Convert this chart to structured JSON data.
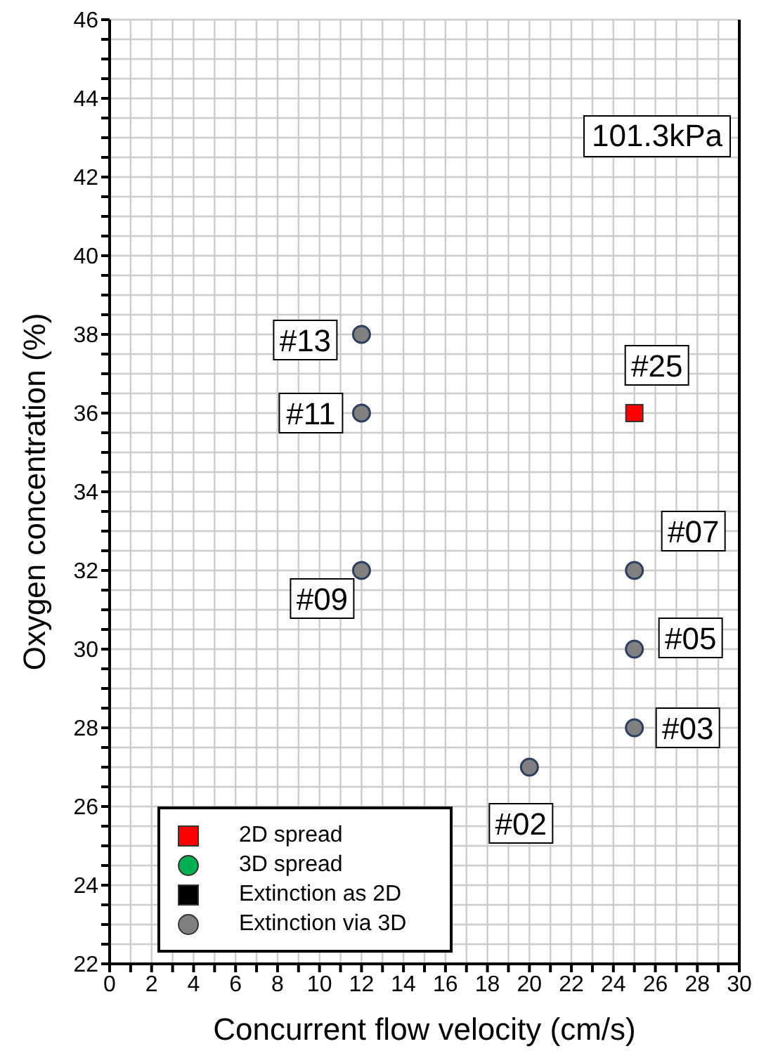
{
  "chart_data": {
    "type": "scatter",
    "xlabel": "Concurrent flow velocity (cm/s)",
    "ylabel": "Oxygen concentration (%)",
    "xlim": [
      0,
      30
    ],
    "ylim": [
      22,
      46
    ],
    "xticks": [
      0,
      {
        "value": 1,
        "label": null
      },
      2,
      {
        "value": 3,
        "label": null
      },
      4,
      {
        "value": 5,
        "label": null
      },
      6,
      {
        "value": 7,
        "label": null
      },
      8,
      {
        "value": 9,
        "label": null
      },
      10,
      {
        "value": 11,
        "label": null
      },
      12,
      {
        "value": 13,
        "label": null
      },
      14,
      {
        "value": 15,
        "label": null
      },
      16,
      {
        "value": 17,
        "label": null
      },
      18,
      {
        "value": 19,
        "label": null
      },
      20,
      {
        "value": 21,
        "label": null
      },
      22,
      {
        "value": 23,
        "label": null
      },
      24,
      {
        "value": 25,
        "label": null
      },
      26,
      {
        "value": 27,
        "label": null
      },
      28,
      {
        "value": 29,
        "label": null
      },
      30
    ],
    "yticks": [
      22,
      {
        "value": 22.5,
        "label": null
      },
      {
        "value": 23,
        "label": null
      },
      {
        "value": 23.5,
        "label": null
      },
      24,
      {
        "value": 24.5,
        "label": null
      },
      {
        "value": 25,
        "label": null
      },
      {
        "value": 25.5,
        "label": null
      },
      26,
      {
        "value": 26.5,
        "label": null
      },
      {
        "value": 27,
        "label": null
      },
      {
        "value": 27.5,
        "label": null
      },
      28,
      {
        "value": 28.5,
        "label": null
      },
      {
        "value": 29,
        "label": null
      },
      {
        "value": 29.5,
        "label": null
      },
      30,
      {
        "value": 30.5,
        "label": null
      },
      {
        "value": 31,
        "label": null
      },
      {
        "value": 31.5,
        "label": null
      },
      32,
      {
        "value": 32.5,
        "label": null
      },
      {
        "value": 33,
        "label": null
      },
      {
        "value": 33.5,
        "label": null
      },
      34,
      {
        "value": 34.5,
        "label": null
      },
      {
        "value": 35,
        "label": null
      },
      {
        "value": 35.5,
        "label": null
      },
      36,
      {
        "value": 36.5,
        "label": null
      },
      {
        "value": 37,
        "label": null
      },
      {
        "value": 37.5,
        "label": null
      },
      38,
      {
        "value": 38.5,
        "label": null
      },
      {
        "value": 39,
        "label": null
      },
      {
        "value": 39.5,
        "label": null
      },
      40,
      {
        "value": 40.5,
        "label": null
      },
      {
        "value": 41,
        "label": null
      },
      {
        "value": 41.5,
        "label": null
      },
      42,
      {
        "value": 42.5,
        "label": null
      },
      {
        "value": 43,
        "label": null
      },
      {
        "value": 43.5,
        "label": null
      },
      44,
      {
        "value": 44.5,
        "label": null
      },
      {
        "value": 45,
        "label": null
      },
      {
        "value": 45.5,
        "label": null
      },
      46
    ],
    "grid": true,
    "legend": "bottom left",
    "series": [
      {
        "name": "2D spread",
        "color": "#ff0000",
        "marker": "square",
        "x": [
          25
        ],
        "values": [
          36
        ]
      },
      {
        "name": "3D spread",
        "color": "#00b050",
        "marker": "circle"
      },
      {
        "name": "Extinction as 2D",
        "color": "#000000",
        "marker": "square"
      },
      {
        "name": "Extinction via 3D",
        "color": "#808080",
        "marker": "circle",
        "x": [
          12,
          12,
          12,
          20,
          25,
          25,
          25
        ],
        "values": [
          38,
          36,
          32,
          27,
          32,
          30,
          28
        ]
      }
    ],
    "annotations": [
      "101.3kPa",
      {
        "text": "#13",
        "x": 12,
        "y": 38
      },
      {
        "text": "#11",
        "x": 12,
        "y": 36
      },
      {
        "text": "#09",
        "x": 12,
        "y": 32
      },
      {
        "text": "#02",
        "x": 20,
        "y": 27
      },
      {
        "text": "#25",
        "x": 25,
        "y": 36
      },
      {
        "text": "#07",
        "x": 25,
        "y": 32
      },
      {
        "text": "#05",
        "x": 25,
        "y": 30
      },
      {
        "text": "#03",
        "x": 25,
        "y": 28
      }
    ]
  }
}
